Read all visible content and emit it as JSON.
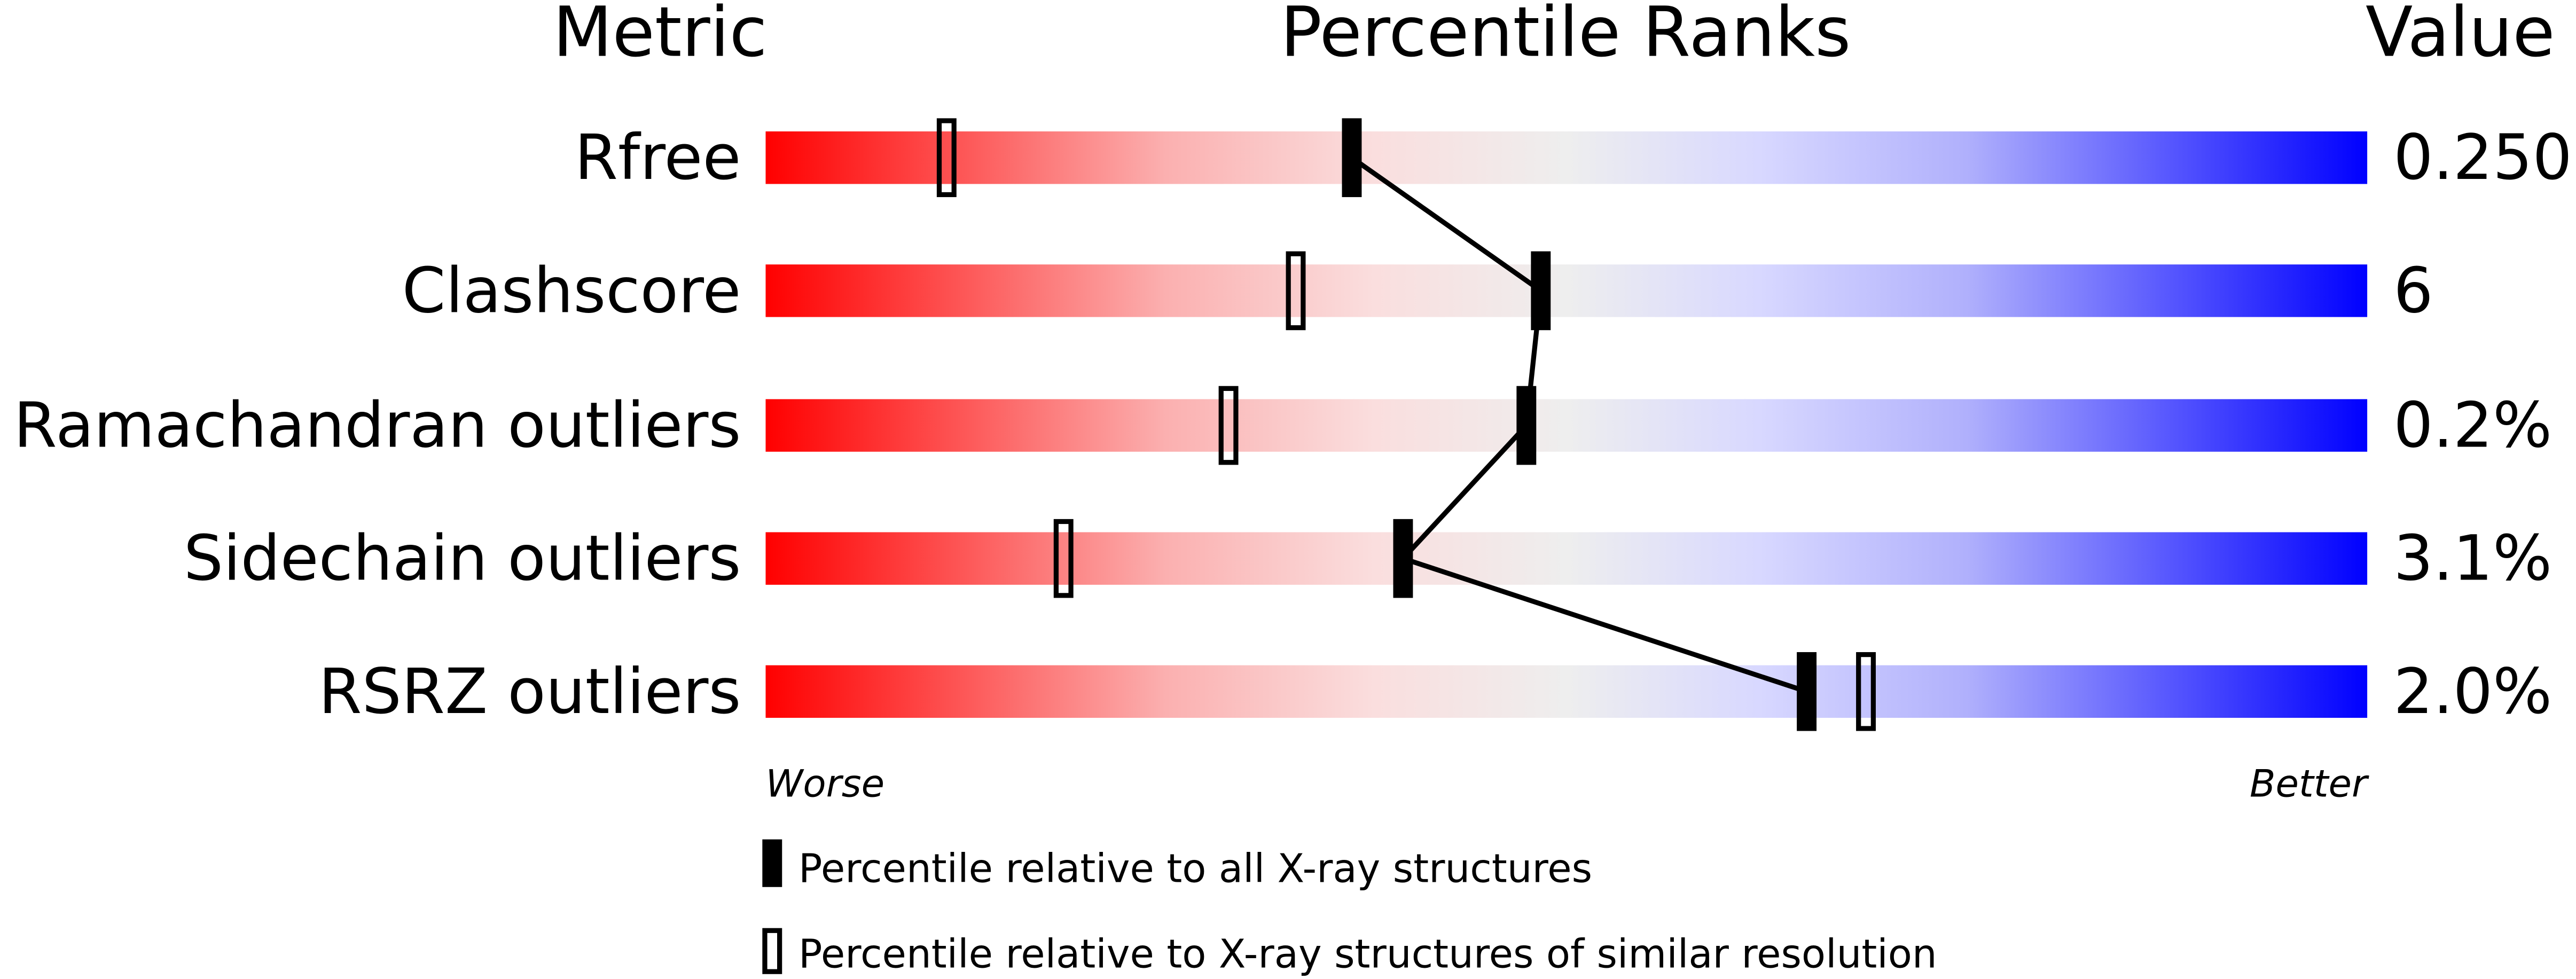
{
  "chart_data": {
    "type": "percentile-bar",
    "headers": {
      "metric": "Metric",
      "ranks": "Percentile Ranks",
      "value": "Value"
    },
    "axis": {
      "min": 0,
      "max": 100,
      "worse_label": "Worse",
      "better_label": "Better"
    },
    "gradient_colors": [
      "#ff0000",
      "#fadede",
      "#eeeeee",
      "#d8d8ff",
      "#0000ff"
    ],
    "metrics": [
      {
        "name": "Rfree",
        "value": "0.250",
        "percentile_all": 36.6,
        "percentile_similar": 11.3
      },
      {
        "name": "Clashscore",
        "value": "6",
        "percentile_all": 48.4,
        "percentile_similar": 33.1
      },
      {
        "name": "Ramachandran outliers",
        "value": "0.2%",
        "percentile_all": 47.5,
        "percentile_similar": 28.9
      },
      {
        "name": "Sidechain outliers",
        "value": "3.1%",
        "percentile_all": 39.8,
        "percentile_similar": 18.6
      },
      {
        "name": "RSRZ outliers",
        "value": "2.0%",
        "percentile_all": 65.0,
        "percentile_similar": 68.7
      }
    ],
    "legend": [
      {
        "marker": "filled",
        "label": "Percentile relative to all X-ray structures"
      },
      {
        "marker": "open",
        "label": "Percentile relative to X-ray structures of similar resolution"
      }
    ]
  }
}
